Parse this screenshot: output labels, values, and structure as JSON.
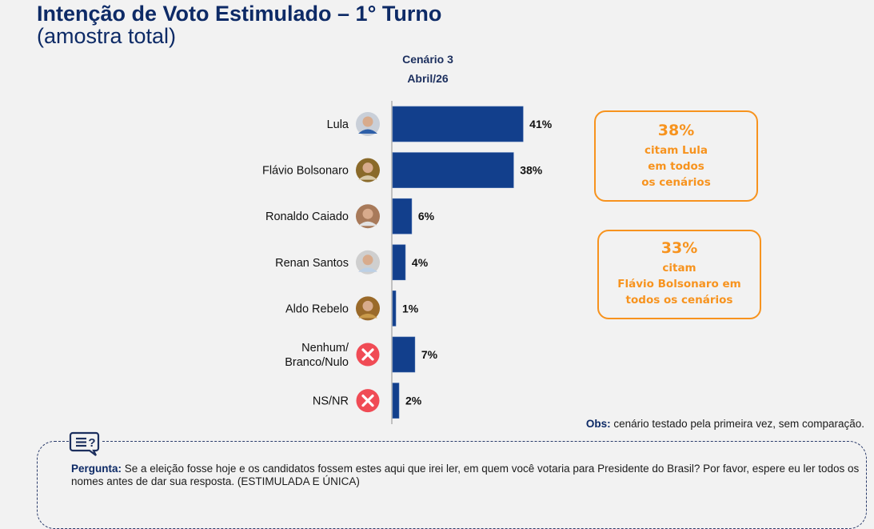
{
  "header": {
    "title": "Intenção de Voto Estimulado – 1° Turno",
    "subtitle": "(amostra total)"
  },
  "chart_data": {
    "type": "bar",
    "orientation": "horizontal",
    "title": "Cenário 3",
    "subtitle": "Abril/26",
    "categories": [
      "Lula",
      "Flávio Bolsonaro",
      "Ronaldo Caiado",
      "Renan Santos",
      "Aldo Rebelo",
      "Nenhum/ Branco/Nulo",
      "NS/NR"
    ],
    "category_lines": [
      [
        "Lula"
      ],
      [
        "Flávio Bolsonaro"
      ],
      [
        "Ronaldo Caiado"
      ],
      [
        "Renan Santos"
      ],
      [
        "Aldo Rebelo"
      ],
      [
        "Nenhum/",
        "Branco/Nulo"
      ],
      [
        "NS/NR"
      ]
    ],
    "icons": [
      "avatar-photo",
      "avatar-photo",
      "avatar-photo",
      "avatar-photo",
      "avatar-photo",
      "x-circle-icon",
      "x-circle-icon"
    ],
    "values": [
      41,
      38,
      6,
      4,
      1,
      7,
      2
    ],
    "value_labels": [
      "41%",
      "38%",
      "6%",
      "4%",
      "1%",
      "7%",
      "2%"
    ],
    "unit": "%",
    "xlim": [
      0,
      100
    ],
    "bar_color": "#123f8c",
    "icon_x_color": "#f04b55"
  },
  "callouts": [
    {
      "value": "38%",
      "lines": [
        "citam Lula",
        "em todos",
        "os cenários"
      ]
    },
    {
      "value": "33%",
      "lines": [
        "citam",
        "Flávio Bolsonaro em",
        "todos os cenários"
      ]
    }
  ],
  "accent_color": "#f7931e",
  "obs": {
    "label": "Obs:",
    "text": " cenário testado pela primeira vez, sem comparação."
  },
  "question": {
    "label": "Pergunta:",
    "text": " Se a eleição fosse hoje e os candidatos fossem estes aqui que irei ler, em quem você votaria para Presidente do Brasil? Por favor, espere eu ler todos os nomes antes de dar sua resposta. (ESTIMULADA E ÚNICA)"
  }
}
